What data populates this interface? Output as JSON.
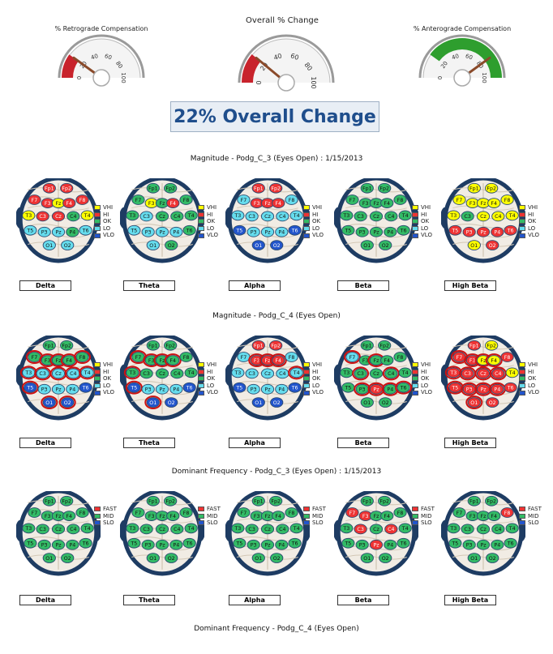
{
  "gauges": [
    {
      "title": "% Retrograde Compensation",
      "ticks": [
        "0",
        "20",
        "40",
        "60",
        "80",
        "100"
      ],
      "value": 20,
      "color": "#c8232c"
    },
    {
      "title": "Overall % Change",
      "ticks": [
        "0",
        "20",
        "40",
        "60",
        "80",
        "100"
      ],
      "value": 22,
      "color": "#c8232c"
    },
    {
      "title": "% Anterograde Compensation",
      "ticks": [
        "0",
        "20",
        "40",
        "60",
        "80",
        "100"
      ],
      "value": 80,
      "color": "#2e9e2e"
    }
  ],
  "overall_text": "22% Overall Change",
  "colors": {
    "VHI": "#ffff00",
    "HI": "#ee3333",
    "OK": "#33bb66",
    "LO": "#66ddee",
    "VLO": "#2255cc",
    "FAST": "#ee3333",
    "MID": "#33bb66",
    "SLO": "#2255cc"
  },
  "electrode_names": [
    "Fp1",
    "Fp2",
    "F7",
    "F3",
    "Fz",
    "F4",
    "F8",
    "T3",
    "C3",
    "Cz",
    "C4",
    "T4",
    "T5",
    "P3",
    "Pz",
    "P4",
    "T6",
    "O1",
    "O2"
  ],
  "legend_mag": [
    "VHI",
    "HI",
    "OK",
    "LO",
    "VLO"
  ],
  "legend_freq": [
    "FAST",
    "MID",
    "SLO"
  ],
  "band_labels": [
    "Delta",
    "Theta",
    "Alpha",
    "Beta",
    "High Beta"
  ],
  "sections": [
    {
      "title": "Magnitude - Podg_C_3 (Eyes Open) : 1/15/2013",
      "legend": "mag",
      "maps": [
        {
          "levels": [
            "HI",
            "HI",
            "HI",
            "HI",
            "VHI",
            "HI",
            "HI",
            "VHI",
            "HI",
            "HI",
            "OK",
            "VHI",
            "LO",
            "LO",
            "LO",
            "OK",
            "LO",
            "LO",
            "LO"
          ],
          "ring": []
        },
        {
          "levels": [
            "OK",
            "OK",
            "OK",
            "VHI",
            "OK",
            "HI",
            "OK",
            "OK",
            "LO",
            "OK",
            "OK",
            "OK",
            "LO",
            "LO",
            "LO",
            "LO",
            "OK",
            "LO",
            "OK"
          ],
          "ring": []
        },
        {
          "levels": [
            "HI",
            "HI",
            "LO",
            "HI",
            "HI",
            "HI",
            "LO",
            "LO",
            "LO",
            "LO",
            "LO",
            "LO",
            "VLO",
            "LO",
            "LO",
            "LO",
            "VLO",
            "VLO",
            "VLO"
          ],
          "ring": []
        },
        {
          "levels": [
            "OK",
            "OK",
            "OK",
            "OK",
            "OK",
            "OK",
            "OK",
            "OK",
            "OK",
            "OK",
            "OK",
            "OK",
            "OK",
            "OK",
            "OK",
            "OK",
            "OK",
            "OK",
            "OK"
          ],
          "ring": []
        },
        {
          "levels": [
            "VHI",
            "VHI",
            "VHI",
            "VHI",
            "VHI",
            "VHI",
            "VHI",
            "VHI",
            "OK",
            "VHI",
            "VHI",
            "VHI",
            "HI",
            "HI",
            "HI",
            "HI",
            "HI",
            "VHI",
            "HI"
          ],
          "ring": []
        }
      ]
    },
    {
      "title": "Magnitude - Podg_C_4 (Eyes Open)",
      "legend": "mag",
      "maps": [
        {
          "levels": [
            "OK",
            "OK",
            "OK",
            "OK",
            "OK",
            "OK",
            "OK",
            "LO",
            "LO",
            "LO",
            "LO",
            "LO",
            "VLO",
            "LO",
            "LO",
            "LO",
            "VLO",
            "VLO",
            "VLO"
          ],
          "ring": [
            "F7",
            "F3",
            "Fz",
            "F4",
            "F8",
            "T3",
            "C3",
            "Cz",
            "C4",
            "T4",
            "T5",
            "O1",
            "O2"
          ]
        },
        {
          "levels": [
            "OK",
            "OK",
            "OK",
            "OK",
            "OK",
            "OK",
            "OK",
            "OK",
            "OK",
            "OK",
            "OK",
            "OK",
            "VLO",
            "LO",
            "LO",
            "LO",
            "VLO",
            "VLO",
            "VLO"
          ],
          "ring": [
            "T3",
            "T5",
            "O1",
            "F7",
            "F3",
            "Fz",
            "F4"
          ]
        },
        {
          "levels": [
            "HI",
            "HI",
            "LO",
            "HI",
            "HI",
            "HI",
            "LO",
            "LO",
            "LO",
            "LO",
            "LO",
            "LO",
            "VLO",
            "LO",
            "LO",
            "LO",
            "VLO",
            "VLO",
            "VLO"
          ],
          "ring": [
            "F3",
            "Fz",
            "F4",
            "T4"
          ]
        },
        {
          "levels": [
            "OK",
            "OK",
            "LO",
            "OK",
            "OK",
            "OK",
            "OK",
            "OK",
            "OK",
            "OK",
            "OK",
            "OK",
            "OK",
            "OK",
            "HI",
            "OK",
            "OK",
            "OK",
            "OK"
          ],
          "ring": [
            "F7",
            "Fz",
            "C3",
            "C4",
            "P4",
            "T6",
            "Pz",
            "P3"
          ]
        },
        {
          "levels": [
            "HI",
            "VHI",
            "HI",
            "HI",
            "VHI",
            "VHI",
            "HI",
            "HI",
            "HI",
            "HI",
            "HI",
            "VHI",
            "HI",
            "HI",
            "HI",
            "HI",
            "HI",
            "HI",
            "HI"
          ],
          "ring": [
            "F7",
            "F3",
            "Fz",
            "F4",
            "T3",
            "C3",
            "Cz",
            "C4",
            "T5",
            "P3",
            "Pz",
            "P4",
            "O1"
          ]
        }
      ]
    },
    {
      "title": "Dominant Frequency - Podg_C_3 (Eyes Open) : 1/15/2013",
      "legend": "freq",
      "maps": [
        {
          "levels": [
            "MID",
            "MID",
            "MID",
            "MID",
            "MID",
            "MID",
            "MID",
            "MID",
            "MID",
            "MID",
            "MID",
            "MID",
            "MID",
            "MID",
            "MID",
            "MID",
            "MID",
            "MID",
            "MID"
          ],
          "ring": []
        },
        {
          "levels": [
            "MID",
            "MID",
            "MID",
            "MID",
            "MID",
            "MID",
            "MID",
            "MID",
            "MID",
            "MID",
            "MID",
            "MID",
            "MID",
            "MID",
            "MID",
            "MID",
            "MID",
            "MID",
            "MID"
          ],
          "ring": []
        },
        {
          "levels": [
            "MID",
            "MID",
            "MID",
            "MID",
            "MID",
            "MID",
            "MID",
            "MID",
            "MID",
            "MID",
            "MID",
            "MID",
            "MID",
            "MID",
            "MID",
            "MID",
            "MID",
            "MID",
            "MID"
          ],
          "ring": []
        },
        {
          "levels": [
            "MID",
            "MID",
            "FAST",
            "FAST",
            "MID",
            "MID",
            "MID",
            "MID",
            "FAST",
            "MID",
            "FAST",
            "MID",
            "MID",
            "MID",
            "FAST",
            "MID",
            "MID",
            "MID",
            "MID"
          ],
          "ring": []
        },
        {
          "levels": [
            "MID",
            "MID",
            "MID",
            "MID",
            "MID",
            "MID",
            "FAST",
            "MID",
            "MID",
            "MID",
            "MID",
            "MID",
            "MID",
            "MID",
            "MID",
            "MID",
            "MID",
            "MID",
            "MID"
          ],
          "ring": []
        }
      ]
    }
  ],
  "footer_title": "Dominant Frequency - Podg_C_4 (Eyes Open)"
}
